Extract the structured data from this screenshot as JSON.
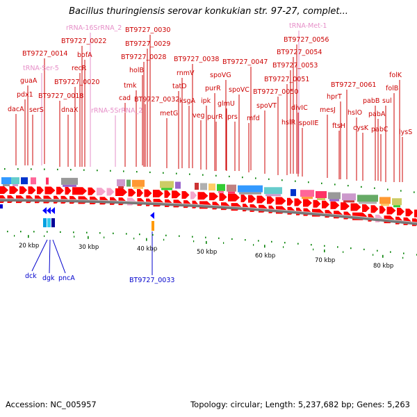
{
  "title": "Bacillus thuringiensis serovar konkukian str. 97-27, complet...",
  "footer": {
    "accession": "Accession: NC_005957",
    "summary": "Topology: circular; Length: 5,237,682 bp; Genes: 5,263"
  },
  "colors": {
    "gene_label": "#cc0000",
    "rna_label": "#e68fc8",
    "reverse_label": "#0000cc",
    "forward_arrow": "#ff0000",
    "rna_arrow": "#f4a6cc",
    "reverse_arrow": "#0000ff",
    "backbone": "#777777",
    "tick": "#008000"
  },
  "scale": {
    "unit": "kbp",
    "ticks": [
      "20 kbp",
      "30 kbp",
      "40 kbp",
      "50 kbp",
      "60 kbp",
      "70 kbp",
      "80 kbp"
    ]
  },
  "top_labels": [
    "rRNA-16SrRNA_2",
    "BT9727_0030",
    "tRNA-Met-1",
    "BT9727_0022",
    "BT9727_0029",
    "BT9727_0056",
    "BT9727_0014",
    "bofA",
    "BT9727_0028",
    "BT9727_0054",
    "guaA",
    "recR",
    "holB",
    "BT9727_0038",
    "BT9727_0047",
    "BT9727_0053",
    "tRNA-Ser-5",
    "rnmV",
    "spoVG",
    "pdx1",
    "BT9727_0020",
    "tmk",
    "tatD",
    "ipk",
    "BT9727_0051",
    "BT9727_0061",
    "folK",
    "serS",
    "BT9727_0018",
    "purR",
    "spoVC",
    "BT9727_0050",
    "folB",
    "cad",
    "BT9727_0032",
    "ksgA",
    "glmU",
    "divIC",
    "hprT",
    "dacA",
    "dnaX",
    "rRNA-5SrRNA_2",
    "metG",
    "veg",
    "purR",
    "prs",
    "spoVT",
    "mesJ",
    "pabB",
    "sul",
    "mfd",
    "hslO",
    "pabA",
    "hslR",
    "spoIIE",
    "ftsH",
    "cysK",
    "pabC",
    "lysS"
  ],
  "bottom_labels": [
    "dck",
    "dgk",
    "pncA",
    "BT9727_0033"
  ]
}
